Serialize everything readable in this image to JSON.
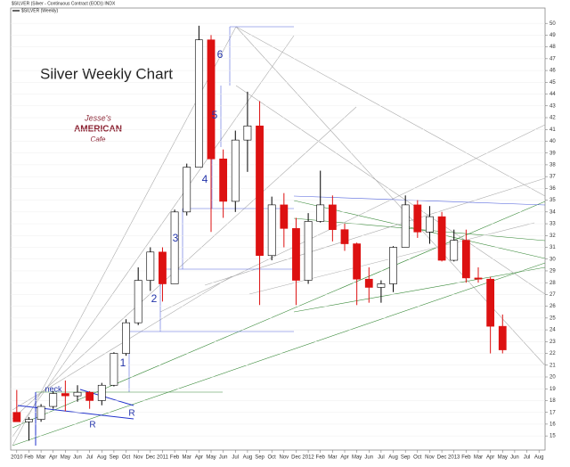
{
  "chart_data": {
    "type": "candlestick",
    "header": "$SILVER (Silver - Continuous Contract (EOD)) INDX",
    "legend_label": "$SILVER (Weekly)",
    "title": "Silver Weekly Chart",
    "logo": [
      "Jesse's",
      "AMERICAN",
      "Cafe"
    ],
    "annotations": [
      "1",
      "2",
      "3",
      "4",
      "5",
      "6",
      "neck",
      "R",
      "R"
    ],
    "categories": [
      "2010",
      "Feb",
      "Mar",
      "Apr",
      "May",
      "Jun",
      "Jul",
      "Aug",
      "Sep",
      "Oct",
      "Nov",
      "Dec",
      "2011",
      "Feb",
      "Mar",
      "Apr",
      "May",
      "Jun",
      "Jul",
      "Aug",
      "Sep",
      "Oct",
      "Nov",
      "Dec",
      "2012",
      "Feb",
      "Mar",
      "Apr",
      "May",
      "Jun",
      "Jul",
      "Aug",
      "Sep",
      "Oct",
      "Nov",
      "Dec",
      "2013",
      "Feb",
      "Mar",
      "Apr",
      "May",
      "Jun",
      "Jul",
      "Aug"
    ],
    "open": [
      17.0,
      16.2,
      16.4,
      17.5,
      18.6,
      18.4,
      18.7,
      18.0,
      19.3,
      22.0,
      24.6,
      28.2,
      30.6,
      27.9,
      34.0,
      37.8,
      48.6,
      38.5,
      34.9,
      40.1,
      41.3,
      30.3,
      34.6,
      32.6,
      28.2,
      33.2,
      34.6,
      32.5,
      31.3,
      28.3,
      27.6,
      27.9,
      31.0,
      34.6,
      32.3,
      33.6,
      29.9,
      31.6,
      28.4,
      28.3,
      24.3,
      null,
      null,
      null
    ],
    "high": [
      18.9,
      16.6,
      17.7,
      18.8,
      19.7,
      19.3,
      18.8,
      19.5,
      22.1,
      24.9,
      29.3,
      31.0,
      31.0,
      34.2,
      38.1,
      49.8,
      49.0,
      39.3,
      40.9,
      44.2,
      43.4,
      35.3,
      35.6,
      33.5,
      33.9,
      37.5,
      35.4,
      33.0,
      31.4,
      29.3,
      28.2,
      31.1,
      35.4,
      35.0,
      34.5,
      34.0,
      32.5,
      32.5,
      29.3,
      28.5,
      25.3,
      null,
      null,
      null
    ],
    "low": [
      16.2,
      14.6,
      16.2,
      17.3,
      17.1,
      17.9,
      17.3,
      17.6,
      19.2,
      21.8,
      24.4,
      27.3,
      26.4,
      27.9,
      33.7,
      37.8,
      32.3,
      33.5,
      34.0,
      37.4,
      26.1,
      29.9,
      31.0,
      26.1,
      27.9,
      33.1,
      31.5,
      30.7,
      26.1,
      26.3,
      26.3,
      27.2,
      31.0,
      31.8,
      31.3,
      29.8,
      29.8,
      28.0,
      28.0,
      22.0,
      22.0,
      null,
      null,
      null
    ],
    "close": [
      16.2,
      16.4,
      17.5,
      18.6,
      18.4,
      18.7,
      18.0,
      19.3,
      22.0,
      24.6,
      28.2,
      30.6,
      27.9,
      34.0,
      37.8,
      48.6,
      38.5,
      34.9,
      40.1,
      41.3,
      30.3,
      34.6,
      32.6,
      28.2,
      33.2,
      34.6,
      32.5,
      31.3,
      28.3,
      27.6,
      27.9,
      31.0,
      34.6,
      32.3,
      33.6,
      29.9,
      31.6,
      28.4,
      28.3,
      24.3,
      22.3,
      null,
      null,
      null
    ],
    "up_color": "#ffffff",
    "down_color": "#dd1111",
    "ylim": [
      13.8,
      51.3
    ],
    "yticks": [
      15,
      16,
      17,
      18,
      19,
      20,
      21,
      22,
      23,
      24,
      25,
      26,
      27,
      28,
      29,
      30,
      31,
      32,
      33,
      34,
      35,
      36,
      37,
      38,
      39,
      40,
      41,
      42,
      43,
      44,
      45,
      46,
      47,
      48,
      49,
      50
    ],
    "grid": true
  }
}
